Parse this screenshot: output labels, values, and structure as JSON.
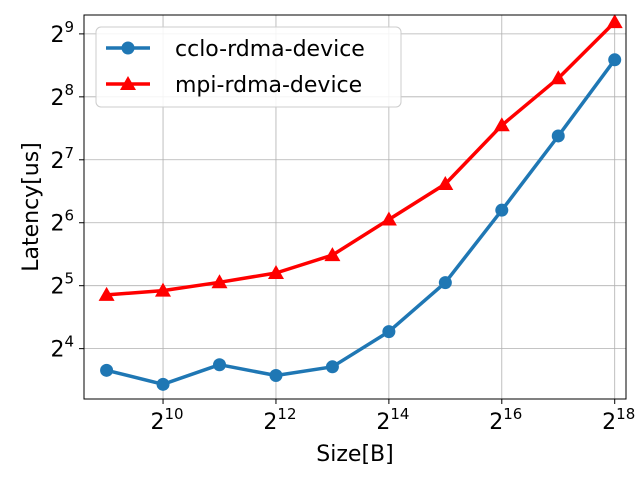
{
  "chart_data": {
    "type": "line",
    "xlabel": "Size[B]",
    "ylabel": "Latency[us]",
    "xscale": "log2",
    "yscale": "log2",
    "xlim_exp": [
      8.6,
      18.2
    ],
    "ylim_exp": [
      3.2,
      9.3
    ],
    "x_tick_exponents": [
      10,
      12,
      14,
      16,
      18
    ],
    "y_tick_exponents": [
      4,
      5,
      6,
      7,
      8,
      9
    ],
    "grid": true,
    "legend_position": "upper-left",
    "x": [
      512,
      1024,
      2048,
      4096,
      8192,
      16384,
      32768,
      65536,
      131072,
      262144
    ],
    "series": [
      {
        "name": "cclo-rdma-device",
        "color": "#1f77b4",
        "marker": "circle",
        "values": [
          12.6,
          10.8,
          13.4,
          11.9,
          13.1,
          19.3,
          33.1,
          73.5,
          166.4,
          384.9
        ]
      },
      {
        "name": "mpi-rdma-device",
        "color": "#ff0000",
        "marker": "triangle",
        "values": [
          28.9,
          30.3,
          33.2,
          36.8,
          44.8,
          66.3,
          98.0,
          187.2,
          314.2,
          582.8
        ]
      }
    ]
  }
}
